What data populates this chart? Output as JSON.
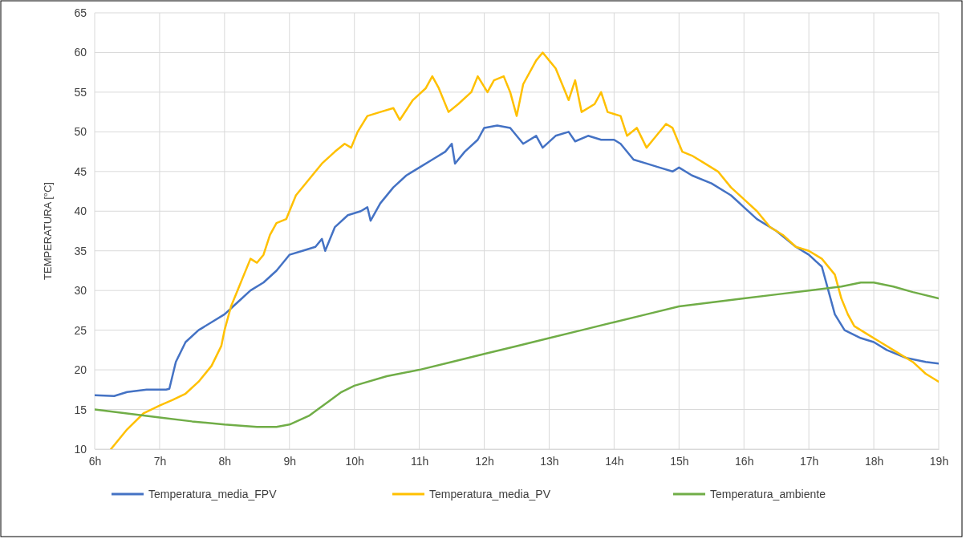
{
  "chart_data": {
    "type": "line",
    "ylabel": "TEMPERATURA [°C]",
    "xlim": [
      6,
      19
    ],
    "ylim": [
      10,
      65
    ],
    "xticks": [
      {
        "value": 6,
        "label": "6h"
      },
      {
        "value": 7,
        "label": "7h"
      },
      {
        "value": 8,
        "label": "8h"
      },
      {
        "value": 9,
        "label": "9h"
      },
      {
        "value": 10,
        "label": "10h"
      },
      {
        "value": 11,
        "label": "11h"
      },
      {
        "value": 12,
        "label": "12h"
      },
      {
        "value": 13,
        "label": "13h"
      },
      {
        "value": 14,
        "label": "14h"
      },
      {
        "value": 15,
        "label": "15h"
      },
      {
        "value": 16,
        "label": "16h"
      },
      {
        "value": 17,
        "label": "17h"
      },
      {
        "value": 18,
        "label": "18h"
      },
      {
        "value": 19,
        "label": "19h"
      }
    ],
    "yticks": [
      10,
      15,
      20,
      25,
      30,
      35,
      40,
      45,
      50,
      55,
      60,
      65
    ],
    "grid": true,
    "legend": "bottom",
    "line_style": "solid",
    "series": [
      {
        "name": "Temperatura_media_FPV",
        "color": "#4472c4",
        "x": [
          6,
          6.3,
          6.5,
          6.8,
          7.1,
          7.15,
          7.25,
          7.4,
          7.6,
          7.8,
          8,
          8.2,
          8.4,
          8.6,
          8.8,
          9,
          9.2,
          9.4,
          9.5,
          9.55,
          9.7,
          9.9,
          10.1,
          10.2,
          10.25,
          10.4,
          10.6,
          10.8,
          11,
          11.2,
          11.4,
          11.5,
          11.55,
          11.7,
          11.9,
          12,
          12.2,
          12.4,
          12.6,
          12.8,
          12.9,
          13.1,
          13.3,
          13.4,
          13.6,
          13.8,
          14,
          14.1,
          14.3,
          14.5,
          14.7,
          14.9,
          15,
          15.2,
          15.5,
          15.8,
          16,
          16.2,
          16.5,
          16.8,
          17,
          17.2,
          17.3,
          17.4,
          17.55,
          17.8,
          18,
          18.2,
          18.5,
          18.8,
          19
        ],
        "values": [
          16.8,
          16.7,
          17.2,
          17.5,
          17.5,
          17.6,
          21,
          23.5,
          25,
          26,
          27,
          28.5,
          30,
          31,
          32.5,
          34.5,
          35,
          35.5,
          36.5,
          35,
          38,
          39.5,
          40,
          40.5,
          38.8,
          41,
          43,
          44.5,
          45.5,
          46.5,
          47.5,
          48.5,
          46,
          47.5,
          49,
          50.5,
          50.8,
          50.5,
          48.5,
          49.5,
          48,
          49.5,
          50,
          48.8,
          49.5,
          49,
          49,
          48.5,
          46.5,
          46,
          45.5,
          45,
          45.5,
          44.5,
          43.5,
          42,
          40.5,
          39,
          37.5,
          35.5,
          34.5,
          33,
          30,
          27,
          25,
          24,
          23.5,
          22.5,
          21.5,
          21,
          20.8
        ]
      },
      {
        "name": "Temperatura_media_PV",
        "color": "#ffc000",
        "x": [
          6.25,
          6.5,
          6.75,
          7,
          7.2,
          7.4,
          7.6,
          7.8,
          7.95,
          8,
          8.1,
          8.2,
          8.3,
          8.4,
          8.5,
          8.6,
          8.7,
          8.8,
          8.95,
          9.1,
          9.3,
          9.5,
          9.7,
          9.85,
          9.95,
          10.05,
          10.2,
          10.4,
          10.6,
          10.7,
          10.9,
          11.1,
          11.2,
          11.3,
          11.45,
          11.6,
          11.8,
          11.9,
          12.05,
          12.15,
          12.3,
          12.4,
          12.5,
          12.6,
          12.8,
          12.9,
          13,
          13.1,
          13.2,
          13.3,
          13.4,
          13.5,
          13.7,
          13.8,
          13.9,
          14.1,
          14.2,
          14.35,
          14.5,
          14.6,
          14.8,
          14.9,
          15.05,
          15.2,
          15.4,
          15.6,
          15.8,
          16,
          16.2,
          16.4,
          16.6,
          16.8,
          17,
          17.2,
          17.4,
          17.5,
          17.6,
          17.7,
          17.9,
          18.1,
          18.3,
          18.6,
          18.8,
          19
        ],
        "values": [
          10,
          12.5,
          14.5,
          15.5,
          16.2,
          17,
          18.5,
          20.5,
          23,
          25,
          28,
          30,
          32,
          34,
          33.5,
          34.5,
          37,
          38.5,
          39,
          42,
          44,
          46,
          47.5,
          48.5,
          48,
          50,
          52,
          52.5,
          53,
          51.5,
          54,
          55.5,
          57,
          55.5,
          52.5,
          53.5,
          55,
          57,
          55,
          56.5,
          57,
          55,
          52,
          56,
          59,
          60,
          59,
          58,
          56,
          54,
          56.5,
          52.5,
          53.5,
          55,
          52.5,
          52,
          49.5,
          50.5,
          48,
          49,
          51,
          50.5,
          47.5,
          47,
          46,
          45,
          43,
          41.5,
          40,
          38,
          37,
          35.5,
          35,
          34,
          32,
          29,
          27,
          25.5,
          24.5,
          23.5,
          22.5,
          21,
          19.5,
          18.5
        ]
      },
      {
        "name": "Temperatura_ambiente",
        "color": "#70ad47",
        "x": [
          6,
          6.5,
          7,
          7.5,
          8,
          8.5,
          8.8,
          9,
          9.3,
          9.6,
          9.8,
          10,
          10.5,
          11,
          11.5,
          12,
          12.5,
          13,
          13.5,
          14,
          14.5,
          15,
          15.5,
          16,
          16.5,
          17,
          17.5,
          17.8,
          18,
          18.3,
          18.6,
          19
        ],
        "values": [
          15,
          14.5,
          14,
          13.5,
          13.1,
          12.8,
          12.8,
          13.1,
          14.2,
          16,
          17.2,
          18,
          19.2,
          20,
          21,
          22,
          23,
          24,
          25,
          26,
          27,
          28,
          28.5,
          29,
          29.5,
          30,
          30.5,
          31,
          31,
          30.5,
          29.8,
          29
        ]
      }
    ]
  }
}
